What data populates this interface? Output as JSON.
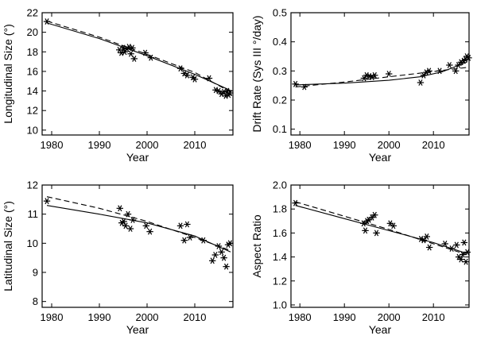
{
  "chart_data": [
    {
      "id": "p1",
      "type": "scatter",
      "xlabel": "Year",
      "ylabel": "Longitudinal Size (°)",
      "xlim": [
        1978,
        2018
      ],
      "ylim": [
        9.5,
        22
      ],
      "xticks": [
        1980,
        1990,
        2000,
        2010
      ],
      "yticks": [
        10,
        12,
        14,
        16,
        18,
        20,
        22
      ],
      "points": [
        [
          1979,
          21.1
        ],
        [
          1994.2,
          18.2
        ],
        [
          1994.6,
          17.9
        ],
        [
          1995.0,
          18.4
        ],
        [
          1995.3,
          18.0
        ],
        [
          1995.8,
          18.3
        ],
        [
          1996.2,
          18.5
        ],
        [
          1996.6,
          17.8
        ],
        [
          1996.9,
          18.4
        ],
        [
          1997.3,
          17.3
        ],
        [
          1999.6,
          17.9
        ],
        [
          2000.8,
          17.4
        ],
        [
          2007.0,
          16.3
        ],
        [
          2007.8,
          15.8
        ],
        [
          2008.4,
          15.6
        ],
        [
          2009.6,
          15.4
        ],
        [
          2010.0,
          15.2
        ],
        [
          2013.0,
          15.3
        ],
        [
          2014.4,
          14.1
        ],
        [
          2015.0,
          14.0
        ],
        [
          2015.6,
          13.7
        ],
        [
          2016.1,
          13.9
        ],
        [
          2016.5,
          13.5
        ],
        [
          2016.8,
          14.0
        ],
        [
          2017.1,
          13.6
        ],
        [
          2017.4,
          13.8
        ]
      ],
      "fit_solid": [
        [
          1979,
          20.95
        ],
        [
          1990,
          19.35
        ],
        [
          2000,
          17.6
        ],
        [
          2010,
          15.7
        ],
        [
          2017.5,
          14.05
        ]
      ],
      "fit_dashed": [
        [
          1979,
          21.15
        ],
        [
          1990,
          19.5
        ],
        [
          2000,
          17.75
        ],
        [
          2010,
          15.9
        ],
        [
          2017.5,
          13.9
        ]
      ]
    },
    {
      "id": "p2",
      "type": "scatter",
      "xlabel": "Year",
      "ylabel": "Drift Rate (Sys III °/day)",
      "xlim": [
        1978,
        2018
      ],
      "ylim": [
        0.08,
        0.5
      ],
      "xticks": [
        1980,
        1990,
        2000,
        2010
      ],
      "yticks": [
        0.1,
        0.2,
        0.3,
        0.4,
        0.5
      ],
      "points": [
        [
          1979,
          0.255
        ],
        [
          1981,
          0.245
        ],
        [
          1994.4,
          0.275
        ],
        [
          1995.0,
          0.285
        ],
        [
          1995.6,
          0.282
        ],
        [
          1996.2,
          0.279
        ],
        [
          1996.8,
          0.285
        ],
        [
          2000.0,
          0.29
        ],
        [
          2007.1,
          0.26
        ],
        [
          2007.8,
          0.285
        ],
        [
          2008.4,
          0.295
        ],
        [
          2009.0,
          0.3
        ],
        [
          2011.4,
          0.3
        ],
        [
          2013.6,
          0.32
        ],
        [
          2015.0,
          0.3
        ],
        [
          2015.6,
          0.32
        ],
        [
          2016.2,
          0.33
        ],
        [
          2016.8,
          0.335
        ],
        [
          2017.2,
          0.34
        ],
        [
          2017.5,
          0.35
        ],
        [
          2017.9,
          0.345
        ]
      ],
      "fit_solid": [
        [
          1979,
          0.252
        ],
        [
          1990,
          0.258
        ],
        [
          2000,
          0.268
        ],
        [
          2007,
          0.28
        ],
        [
          2012,
          0.297
        ],
        [
          2017.5,
          0.33
        ]
      ],
      "fit_dashed": [
        [
          1979,
          0.245
        ],
        [
          1990,
          0.262
        ],
        [
          2000,
          0.28
        ],
        [
          2010,
          0.298
        ],
        [
          2017.5,
          0.312
        ]
      ]
    },
    {
      "id": "p3",
      "type": "scatter",
      "xlabel": "Year",
      "ylabel": "Latitudinal Size (°)",
      "xlim": [
        1978,
        2018
      ],
      "ylim": [
        7.8,
        12
      ],
      "xticks": [
        1980,
        1990,
        2000,
        2010
      ],
      "yticks": [
        8,
        9,
        10,
        11,
        12
      ],
      "points": [
        [
          1979,
          11.45
        ],
        [
          1994.3,
          11.2
        ],
        [
          1994.7,
          10.7
        ],
        [
          1995.1,
          10.75
        ],
        [
          1995.5,
          10.6
        ],
        [
          1996.0,
          11.0
        ],
        [
          1996.5,
          10.5
        ],
        [
          1997.0,
          10.8
        ],
        [
          1999.8,
          10.6
        ],
        [
          2000.6,
          10.4
        ],
        [
          2007.0,
          10.6
        ],
        [
          2007.8,
          10.1
        ],
        [
          2008.4,
          10.65
        ],
        [
          2009.0,
          10.2
        ],
        [
          2011.8,
          10.1
        ],
        [
          2013.7,
          9.4
        ],
        [
          2014.3,
          9.6
        ],
        [
          2015.0,
          9.9
        ],
        [
          2015.6,
          9.7
        ],
        [
          2016.1,
          9.5
        ],
        [
          2016.6,
          9.2
        ],
        [
          2017.0,
          9.95
        ],
        [
          2017.4,
          10.0
        ]
      ],
      "fit_solid": [
        [
          1979,
          11.3
        ],
        [
          1990,
          11.0
        ],
        [
          2000,
          10.7
        ],
        [
          2010,
          10.25
        ],
        [
          2017.5,
          9.7
        ]
      ],
      "fit_dashed": [
        [
          1979,
          11.6
        ],
        [
          1990,
          11.2
        ],
        [
          2000,
          10.75
        ],
        [
          2010,
          10.2
        ],
        [
          2017.5,
          9.75
        ]
      ]
    },
    {
      "id": "p4",
      "type": "scatter",
      "xlabel": "Year",
      "ylabel": "Aspect Ratio",
      "xlim": [
        1978,
        2018
      ],
      "ylim": [
        0.98,
        2.0
      ],
      "xticks": [
        1980,
        1990,
        2000,
        2010
      ],
      "yticks": [
        1.0,
        1.2,
        1.4,
        1.6,
        1.8,
        2.0
      ],
      "ytick_labels": [
        "1.0",
        "1.2",
        "1.4",
        "1.6",
        "1.8",
        "2.0"
      ],
      "points": [
        [
          1979,
          1.85
        ],
        [
          1994.3,
          1.68
        ],
        [
          1994.7,
          1.62
        ],
        [
          1995.1,
          1.7
        ],
        [
          1995.5,
          1.71
        ],
        [
          1996.2,
          1.73
        ],
        [
          1996.8,
          1.75
        ],
        [
          1997.2,
          1.6
        ],
        [
          2000.3,
          1.68
        ],
        [
          2001.0,
          1.66
        ],
        [
          2007.2,
          1.55
        ],
        [
          2007.8,
          1.54
        ],
        [
          2008.5,
          1.57
        ],
        [
          2009.1,
          1.48
        ],
        [
          2012.6,
          1.51
        ],
        [
          2014.1,
          1.47
        ],
        [
          2015.2,
          1.5
        ],
        [
          2015.7,
          1.4
        ],
        [
          2016.2,
          1.38
        ],
        [
          2016.6,
          1.42
        ],
        [
          2016.9,
          1.52
        ],
        [
          2017.3,
          1.36
        ],
        [
          2017.6,
          1.44
        ]
      ],
      "fit_solid": [
        [
          1979,
          1.83
        ],
        [
          1990,
          1.72
        ],
        [
          2000,
          1.62
        ],
        [
          2010,
          1.52
        ],
        [
          2017.5,
          1.43
        ]
      ],
      "fit_dashed": [
        [
          1979,
          1.86
        ],
        [
          1990,
          1.74
        ],
        [
          2000,
          1.63
        ],
        [
          2010,
          1.51
        ],
        [
          2017.5,
          1.42
        ]
      ]
    }
  ]
}
